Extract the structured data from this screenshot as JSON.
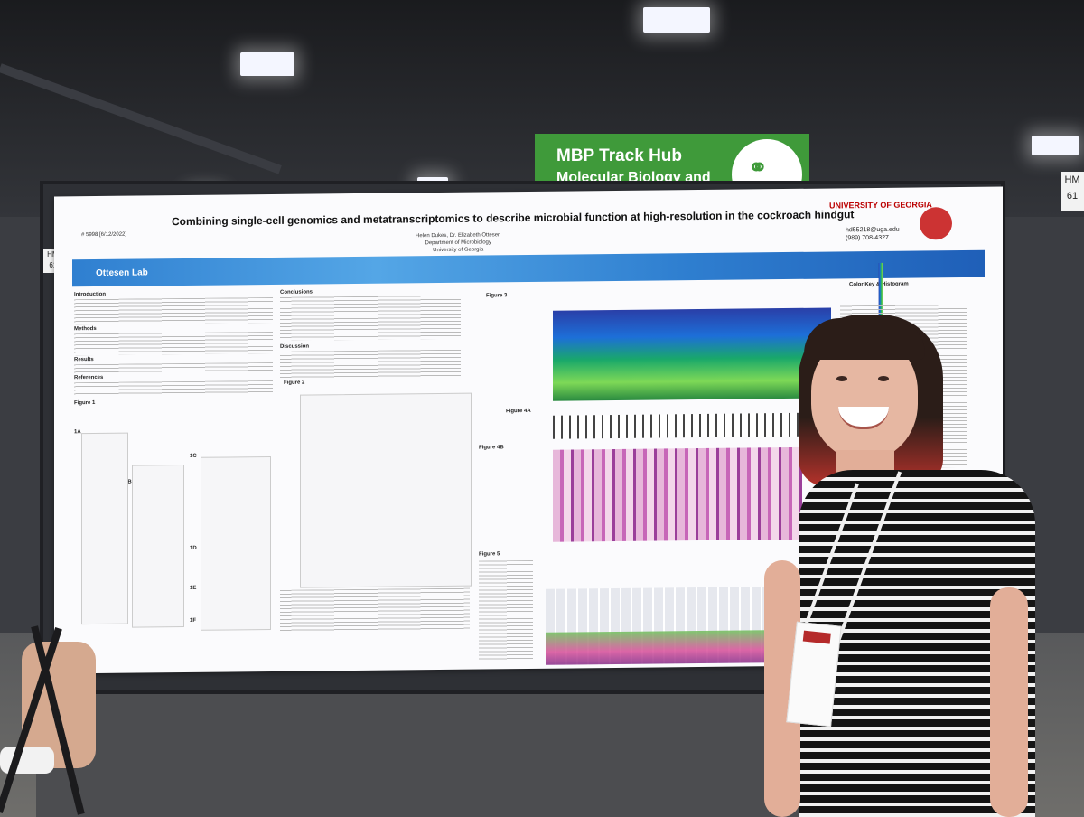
{
  "scene": {
    "description_colors": {
      "sign_green": "#3f9a3a",
      "uga_red": "#b00000",
      "wave_blue": "#2f7fd0"
    }
  },
  "sign": {
    "line1": "MBP Track Hub",
    "line2": "Molecular Biology and",
    "icon": "molecule-icon"
  },
  "board_tags": {
    "left": "HMB 617",
    "right": "HM 61"
  },
  "poster": {
    "id": "# 5998 [6/12/2022]",
    "title": "Combining single-cell genomics and metatranscriptomics to describe microbial function at high-resolution in the cockroach hindgut",
    "authors": "Helen Dukes, Dr. Elizabeth Ottesen",
    "department": "Department of Microbiology",
    "university": "University of Georgia",
    "lab_name": "Ottesen Lab",
    "university_logo": "UNIVERSITY OF GEORGIA",
    "contact_email": "hd55218@uga.edu",
    "contact_phone": "(989) 708-4327",
    "dept_logo": "Department of Microbiology",
    "sections": {
      "introduction": "Introduction",
      "methods": "Methods",
      "results": "Results",
      "references": "References",
      "conclusions": "Conclusions",
      "discussion": "Discussion",
      "figure1": "Figure 1",
      "figure1a": "1A",
      "figure1b": "1B",
      "figure1c": "1C",
      "figure1d": "1D",
      "figure1e": "1E",
      "figure1f": "1F",
      "figure2": "Figure 2",
      "figure3": "Figure 3",
      "figure4a": "Figure 4A",
      "figure4b": "Figure 4B",
      "figure5": "Figure 5",
      "color_key": "Color Key & Histogram"
    }
  }
}
